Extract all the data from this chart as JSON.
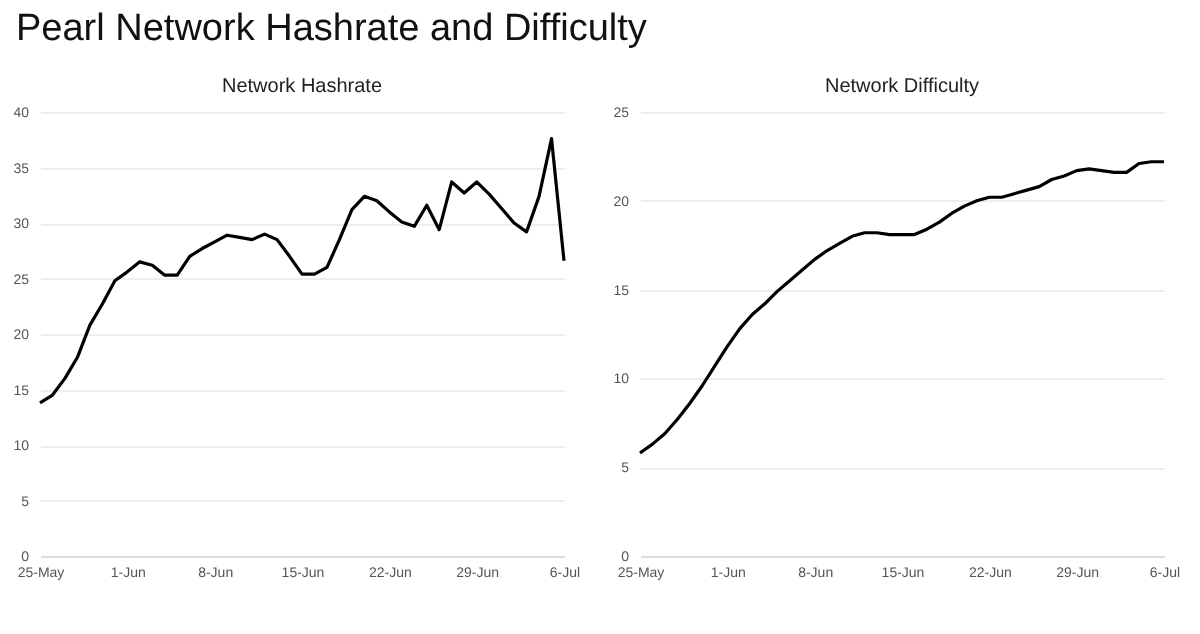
{
  "chart_data": [
    {
      "type": "other",
      "title": "Pearl Network Hashrate and Difficulty"
    },
    {
      "type": "line",
      "title": "Network Hashrate",
      "color": "#000000",
      "grid": "y",
      "marker": "none",
      "xlim": [
        "--05-25",
        "--07-06"
      ],
      "xticks": [
        {
          "value": "--05-25",
          "label": "25-May"
        },
        {
          "value": "--06-01",
          "label": "1-Jun"
        },
        {
          "value": "--06-08",
          "label": "8-Jun"
        },
        {
          "value": "--06-15",
          "label": "15-Jun"
        },
        {
          "value": "--06-22",
          "label": "22-Jun"
        },
        {
          "value": "--06-29",
          "label": "29-Jun"
        },
        {
          "value": "--07-06",
          "label": "6-Jul"
        }
      ],
      "ylim": [
        0,
        40
      ],
      "yticks": [
        0,
        5,
        10,
        15,
        20,
        25,
        30,
        35,
        40
      ],
      "x": [
        "--05-25",
        "--05-26",
        "--05-27",
        "--05-28",
        "--05-29",
        "--05-30",
        "--05-31",
        "--06-01",
        "--06-02",
        "--06-03",
        "--06-04",
        "--06-05",
        "--06-06",
        "--06-07",
        "--06-08",
        "--06-09",
        "--06-10",
        "--06-11",
        "--06-12",
        "--06-13",
        "--06-14",
        "--06-15",
        "--06-16",
        "--06-17",
        "--06-18",
        "--06-19",
        "--06-20",
        "--06-21",
        "--06-22",
        "--06-23",
        "--06-24",
        "--06-25",
        "--06-26",
        "--06-27",
        "--06-28",
        "--06-29",
        "--06-30",
        "--07-01",
        "--07-02",
        "--07-03",
        "--07-04",
        "--07-05",
        "--07-06"
      ],
      "values": [
        13.8,
        14.5,
        16.0,
        17.9,
        20.8,
        22.7,
        24.8,
        25.6,
        26.5,
        26.2,
        25.3,
        25.3,
        27.0,
        27.7,
        28.3,
        28.9,
        28.7,
        28.5,
        29.0,
        28.5,
        27.0,
        25.4,
        25.4,
        26.0,
        28.5,
        31.2,
        32.4,
        32.0,
        31.0,
        30.1,
        29.7,
        31.6,
        29.4,
        33.7,
        32.7,
        33.7,
        32.6,
        31.3,
        30.0,
        29.2,
        32.4,
        37.6,
        26.6
      ]
    },
    {
      "type": "line",
      "title": "Network Difficulty",
      "color": "#000000",
      "grid": "y",
      "marker": "none",
      "xlim": [
        "--05-25",
        "--07-06"
      ],
      "xticks": [
        {
          "value": "--05-25",
          "label": "25-May"
        },
        {
          "value": "--06-01",
          "label": "1-Jun"
        },
        {
          "value": "--06-08",
          "label": "8-Jun"
        },
        {
          "value": "--06-15",
          "label": "15-Jun"
        },
        {
          "value": "--06-22",
          "label": "22-Jun"
        },
        {
          "value": "--06-29",
          "label": "29-Jun"
        },
        {
          "value": "--07-06",
          "label": "6-Jul"
        }
      ],
      "ylim": [
        0,
        25
      ],
      "yticks": [
        0,
        5,
        10,
        15,
        20,
        25
      ],
      "x": [
        "--05-25",
        "--05-26",
        "--05-27",
        "--05-28",
        "--05-29",
        "--05-30",
        "--05-31",
        "--06-01",
        "--06-02",
        "--06-03",
        "--06-04",
        "--06-05",
        "--06-06",
        "--06-07",
        "--06-08",
        "--06-09",
        "--06-10",
        "--06-11",
        "--06-12",
        "--06-13",
        "--06-14",
        "--06-15",
        "--06-16",
        "--06-17",
        "--06-18",
        "--06-19",
        "--06-20",
        "--06-21",
        "--06-22",
        "--06-23",
        "--06-24",
        "--06-25",
        "--06-26",
        "--06-27",
        "--06-28",
        "--06-29",
        "--06-30",
        "--07-01",
        "--07-02",
        "--07-03",
        "--07-04",
        "--07-05",
        "--07-06"
      ],
      "values": [
        5.8,
        6.3,
        6.9,
        7.7,
        8.6,
        9.6,
        10.7,
        11.8,
        12.8,
        13.6,
        14.2,
        14.9,
        15.5,
        16.1,
        16.7,
        17.2,
        17.6,
        18.0,
        18.2,
        18.2,
        18.1,
        18.1,
        18.1,
        18.4,
        18.8,
        19.3,
        19.7,
        20.0,
        20.2,
        20.2,
        20.4,
        20.6,
        20.8,
        21.2,
        21.4,
        21.7,
        21.8,
        21.7,
        21.6,
        21.6,
        22.1,
        22.2,
        22.2
      ]
    }
  ]
}
